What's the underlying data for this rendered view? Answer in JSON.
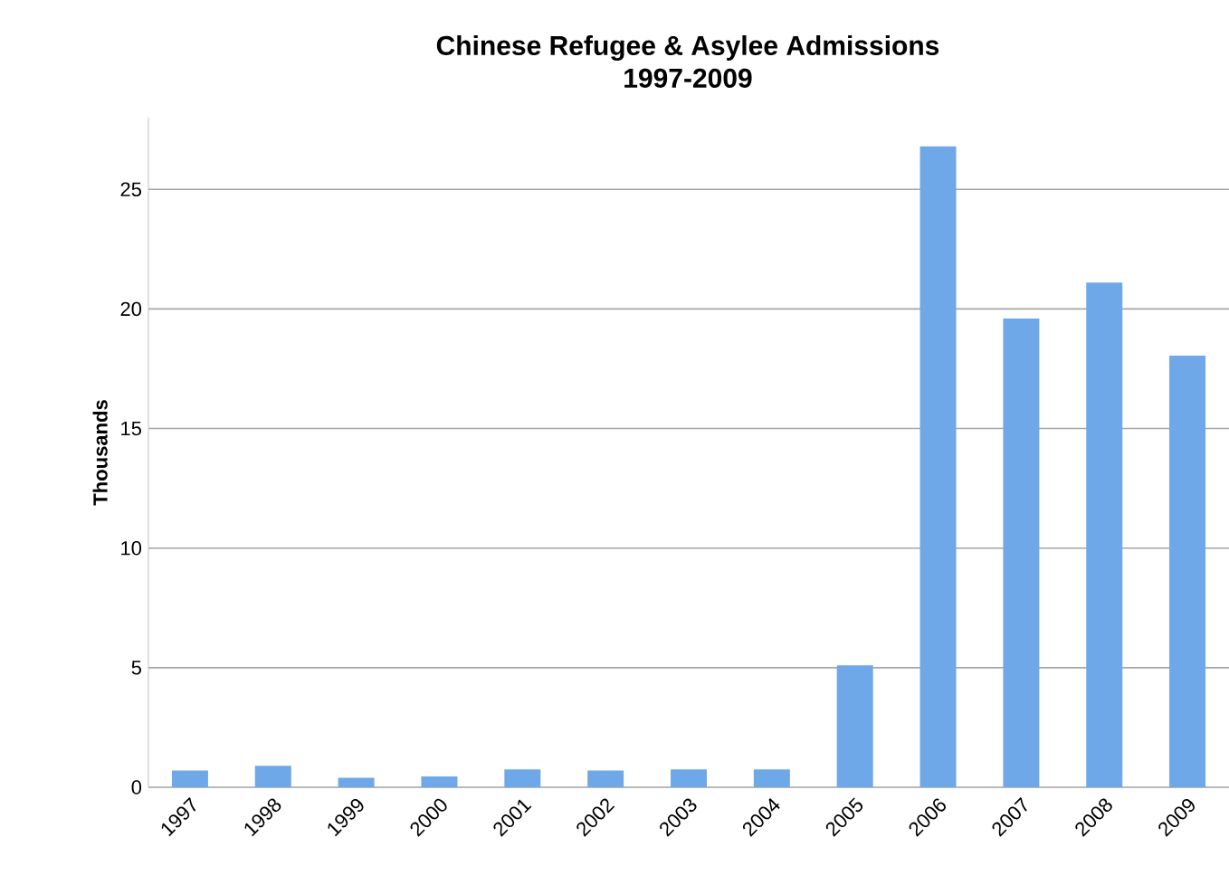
{
  "chart_data": {
    "type": "bar",
    "title": "Chinese Refugee & Asylee Admissions\n1997-2009",
    "ylabel": "Thousands",
    "categories": [
      "1997",
      "1998",
      "1999",
      "2000",
      "2001",
      "2002",
      "2003",
      "2004",
      "2005",
      "2006",
      "2007",
      "2008",
      "2009"
    ],
    "values": [
      0.7,
      0.9,
      0.4,
      0.45,
      0.75,
      0.7,
      0.75,
      0.75,
      5.1,
      26.8,
      19.6,
      21.1,
      18.05
    ],
    "color": "#6fa8e8",
    "ylim": [
      0,
      28
    ],
    "yticks": [
      0,
      5,
      10,
      15,
      20,
      25
    ],
    "grid": "y"
  }
}
